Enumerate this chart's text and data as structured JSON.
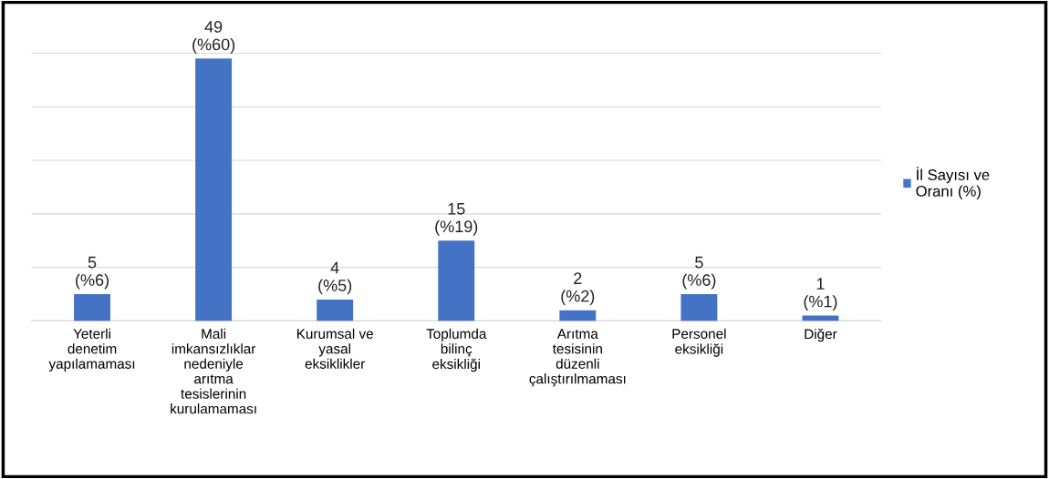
{
  "chart_data": {
    "type": "bar",
    "categories": [
      "Yeterli\ndenetim\nyapılamaması",
      "Mali\nimkansızlıklar\nnedeniyle\narıtma\ntesislerinin\nkurulamaması",
      "Kurumsal ve\nyasal\neksiklikler",
      "Toplumda\nbilinç\neksikliği",
      "Arıtma\ntesisinin\ndüzenli\nçalıştırılmaması",
      "Personel\neksikliği",
      "Diğer"
    ],
    "series": [
      {
        "name": "İl Sayısı ve\nOranı (%)",
        "color": "#4472c4",
        "values": [
          5,
          49,
          4,
          15,
          2,
          5,
          1
        ],
        "value_labels": [
          "5\n(%6)",
          "49\n(%60)",
          "4\n(%5)",
          "15\n(%19)",
          "2\n(%2)",
          "5\n(%6)",
          "1\n(%1)"
        ]
      }
    ],
    "grid": "y",
    "legend": "right"
  }
}
